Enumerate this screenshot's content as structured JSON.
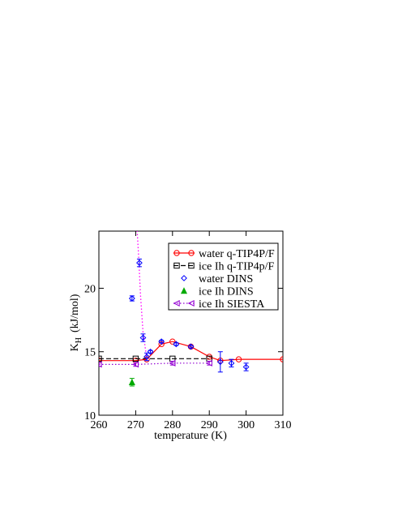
{
  "chart_data": {
    "type": "line",
    "xlabel": "temperature (K)",
    "ylabel": "K",
    "ylabel_sub": "H",
    "ylabel_unit": "(kJ/mol)",
    "xlim": [
      260,
      310
    ],
    "ylim": [
      10,
      24.5
    ],
    "xticks": [
      260,
      270,
      280,
      290,
      300,
      310
    ],
    "yticks": [
      10,
      15,
      20
    ],
    "series": [
      {
        "name": "water q-TIP4P/F",
        "color": "#ff0000",
        "line": "solid",
        "marker": "circle",
        "x": [
          260,
          270,
          273,
          277,
          280,
          285,
          290,
          293,
          298,
          310
        ],
        "values": [
          14.3,
          14.3,
          14.4,
          15.6,
          15.8,
          15.4,
          14.6,
          14.3,
          14.4,
          14.4
        ]
      },
      {
        "name": "ice Ih q-TIP4p/F",
        "color": "#000000",
        "line": "dashed",
        "marker": "square",
        "x": [
          260,
          270,
          280,
          290
        ],
        "values": [
          14.45,
          14.45,
          14.45,
          14.45
        ]
      },
      {
        "name": "water DINS",
        "color": "#0000ff",
        "line": "none",
        "marker": "diamond",
        "x": [
          269,
          271,
          272,
          273,
          274,
          277,
          281,
          285,
          293,
          296,
          300
        ],
        "values": [
          19.2,
          22.0,
          16.1,
          14.6,
          15.0,
          15.8,
          15.6,
          15.4,
          14.2,
          14.1,
          13.8
        ],
        "errors": [
          0.2,
          0.3,
          0.3,
          0.3,
          0.1,
          0.1,
          0.1,
          0.1,
          0.8,
          0.3,
          0.3
        ]
      },
      {
        "name": "ice Ih DINS",
        "color": "#00aa00",
        "line": "none",
        "marker": "triangle-up",
        "x": [
          269
        ],
        "values": [
          12.6
        ],
        "errors": [
          0.3
        ]
      },
      {
        "name": "ice Ih SIESTA",
        "color": "#9400d3",
        "line": "dotted",
        "marker": "triangle-left",
        "x": [
          260,
          270,
          280,
          290
        ],
        "values": [
          14.0,
          14.0,
          14.1,
          14.1
        ],
        "errors": [
          0.15,
          0.15,
          0.15,
          0.15
        ]
      }
    ],
    "curves": [
      {
        "color": "#ff00ff",
        "line": "dotted",
        "x": [
          273,
          272,
          271.3,
          270.8,
          270.4
        ],
        "values": [
          14.5,
          16.5,
          19.5,
          22.5,
          24.5
        ]
      }
    ]
  }
}
